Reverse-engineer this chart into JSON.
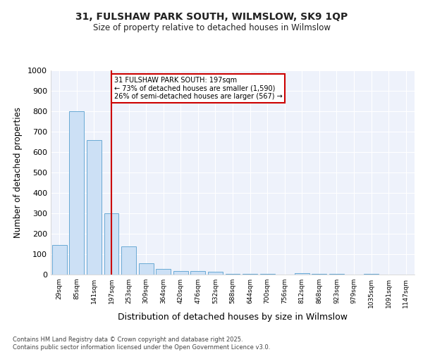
{
  "title_line1": "31, FULSHAW PARK SOUTH, WILMSLOW, SK9 1QP",
  "title_line2": "Size of property relative to detached houses in Wilmslow",
  "xlabel": "Distribution of detached houses by size in Wilmslow",
  "ylabel": "Number of detached properties",
  "categories": [
    "29sqm",
    "85sqm",
    "141sqm",
    "197sqm",
    "253sqm",
    "309sqm",
    "364sqm",
    "420sqm",
    "476sqm",
    "532sqm",
    "588sqm",
    "644sqm",
    "700sqm",
    "756sqm",
    "812sqm",
    "868sqm",
    "923sqm",
    "979sqm",
    "1035sqm",
    "1091sqm",
    "1147sqm"
  ],
  "values": [
    145,
    800,
    660,
    300,
    138,
    55,
    28,
    18,
    17,
    13,
    3,
    3,
    2,
    1,
    8,
    5,
    2,
    1,
    4,
    1,
    1
  ],
  "bar_color": "#cce0f5",
  "bar_edge_color": "#6aaad4",
  "vline_x_index": 3,
  "vline_color": "#cc0000",
  "annotation_text": "31 FULSHAW PARK SOUTH: 197sqm\n← 73% of detached houses are smaller (1,590)\n26% of semi-detached houses are larger (567) →",
  "annotation_box_edgecolor": "#cc0000",
  "ylim": [
    0,
    1000
  ],
  "yticks": [
    0,
    100,
    200,
    300,
    400,
    500,
    600,
    700,
    800,
    900,
    1000
  ],
  "background_color": "#ffffff",
  "plot_bg_color": "#eef2fb",
  "grid_color": "#ffffff",
  "footer_line1": "Contains HM Land Registry data © Crown copyright and database right 2025.",
  "footer_line2": "Contains public sector information licensed under the Open Government Licence v3.0."
}
